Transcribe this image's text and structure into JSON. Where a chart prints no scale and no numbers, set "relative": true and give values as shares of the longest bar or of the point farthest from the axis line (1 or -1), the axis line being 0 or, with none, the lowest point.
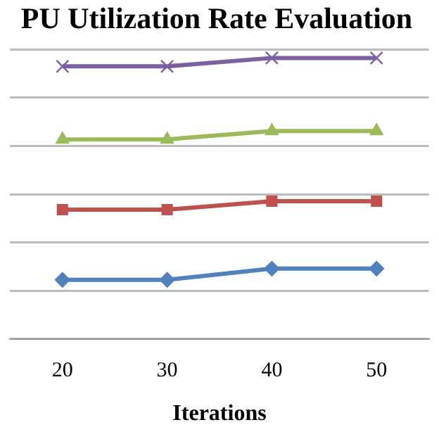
{
  "chart_data": {
    "type": "line",
    "title": "PU Utilization Rate Evaluation",
    "xlabel": "Iterations",
    "categories": [
      "20",
      "30",
      "40",
      "50"
    ],
    "relative": true,
    "grid": "y",
    "legend": false,
    "line_style": "solid",
    "series": [
      {
        "color": "#7e5fa4",
        "marker": "cross",
        "values": [
          0.97,
          0.97,
          1.0,
          1.0
        ]
      },
      {
        "color": "#9bbb59",
        "marker": "triangle",
        "values": [
          0.71,
          0.71,
          0.74,
          0.74
        ]
      },
      {
        "color": "#c0504d",
        "marker": "square",
        "values": [
          0.46,
          0.46,
          0.49,
          0.49
        ]
      },
      {
        "color": "#4f81bd",
        "marker": "diamond",
        "values": [
          0.21,
          0.21,
          0.25,
          0.25
        ]
      }
    ]
  }
}
